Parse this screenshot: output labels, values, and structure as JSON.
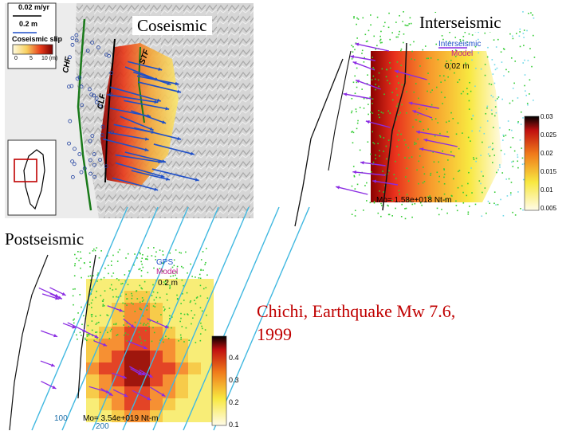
{
  "slide": {
    "caption_line1": "Chichi, Earthquake Mw 7.6,",
    "caption_line2": "1999"
  },
  "coseismic": {
    "title": "Coseismic",
    "legend_velocity": "0.02 m/yr",
    "legend_offset": "0.2 m",
    "legend_slip": "Coseismic slip",
    "colorbar_ticks": [
      "0",
      "5",
      "10 (m)"
    ],
    "fault_labels": [
      "CHF",
      "CLF",
      "STF"
    ]
  },
  "interseismic": {
    "title": "Interseismic",
    "legend_series": "Interseismic",
    "legend_model": "Model",
    "scale": "0.02 m",
    "moment": "Mo= 1.58e+018 Nt-m",
    "colorbar_ticks": [
      "0.03",
      "0.025",
      "0.02",
      "0.015",
      "0.01",
      "0.005"
    ]
  },
  "postseismic": {
    "title": "Postseismic",
    "legend_gps": "GPS",
    "legend_model": "Model",
    "scale": "0.2 m",
    "moment": "Mo= 3.54e+019 Nt-m",
    "colorbar_ticks": [
      "0.4",
      "0.3",
      "0.2",
      "0.1"
    ],
    "contour_labels": [
      "100",
      "200"
    ]
  },
  "colors": {
    "caption": "#c00000",
    "slip_high": "#8b0000",
    "slip_mid": "#e8301c",
    "slip_low": "#f8e840",
    "gps_points": "#33cc33",
    "model_arrow": "#8a2be2",
    "coseismic_arrow": "#1e4fc8",
    "fault": "#1a7a1a"
  }
}
